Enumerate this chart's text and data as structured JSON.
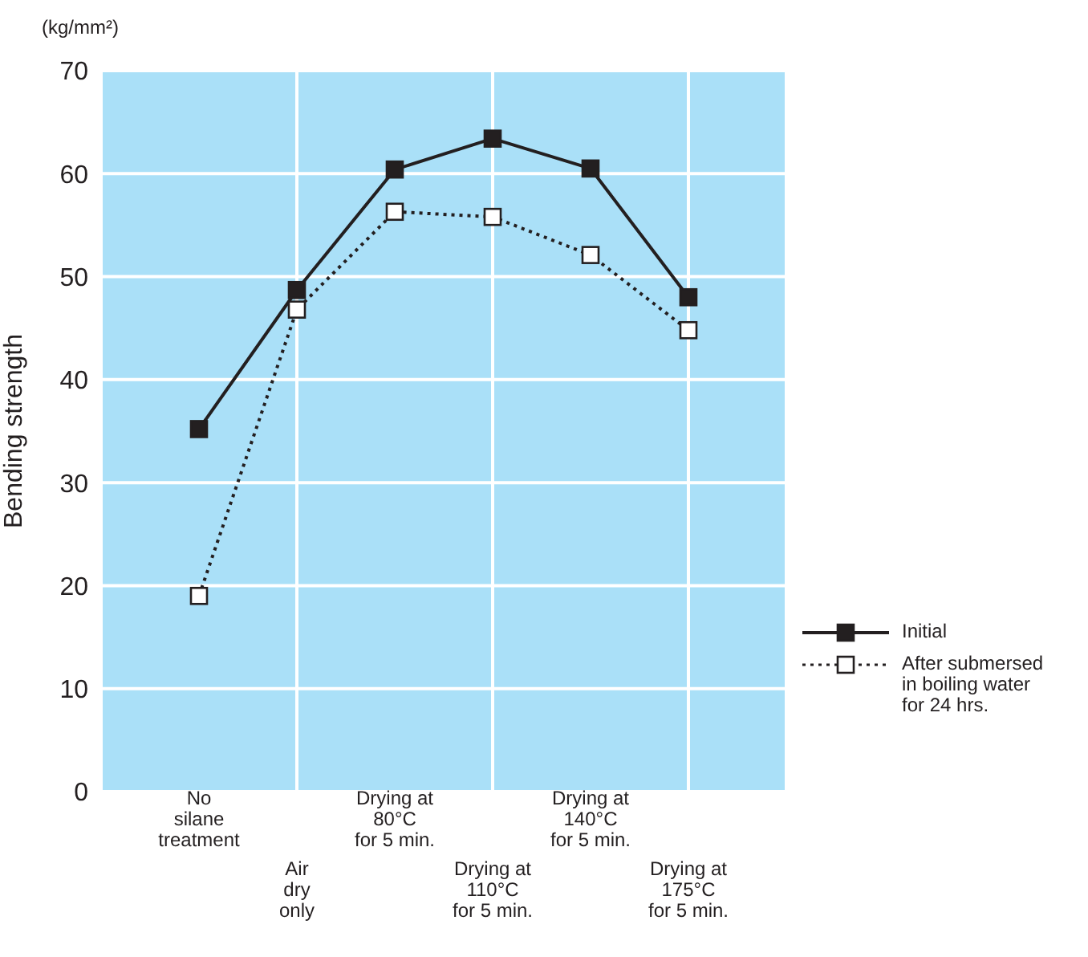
{
  "chart_data": {
    "type": "line",
    "ylabel": "Bending strength",
    "annotations": [
      "(kg/mm²)"
    ],
    "categories": [
      "No\nsilane\ntreatment",
      "Air\ndry\nonly",
      "Drying at\n80°C\nfor 5 min.",
      "Drying at\n110°C\nfor 5 min.",
      "Drying at\n140°C\nfor 5 min.",
      "Drying at\n175°C\nfor 5 min."
    ],
    "series": [
      {
        "name": "Initial",
        "color": "#231f20",
        "line_style": "solid",
        "values": [
          35.2,
          48.7,
          60.4,
          63.4,
          60.5,
          48.0
        ]
      },
      {
        "name": "After submersed\nin boiling water\nfor 24 hrs.",
        "color": "#231f20",
        "line_style": "dotted",
        "values": [
          19.0,
          46.8,
          56.3,
          55.8,
          52.1,
          44.8
        ]
      }
    ],
    "ylim": [
      0,
      70
    ],
    "yticks": [
      0,
      10,
      20,
      30,
      40,
      50,
      60,
      70
    ],
    "grid": true,
    "marker": "square",
    "legend": "right"
  }
}
